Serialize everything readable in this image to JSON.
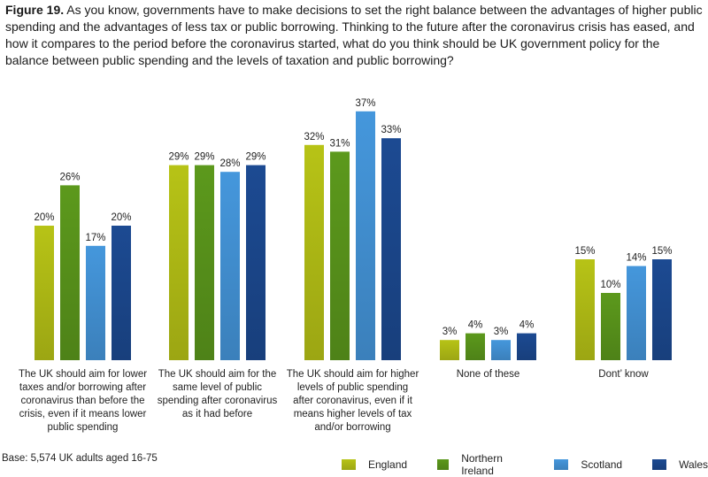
{
  "title": {
    "figure_label": "Figure 19.",
    "text": " As you know, governments have to make decisions to set the right balance between the advantages of higher public spending and the advantages of less tax or public borrowing. Thinking to the future after the coronavirus crisis has eased, and how it compares to the period before the coronavirus started, what do you think should be UK government policy for the balance between public spending and the levels of taxation and public borrowing?"
  },
  "base_note": "Base: 5,574 UK adults aged 16-75",
  "chart_data": {
    "type": "bar",
    "categories": [
      "The UK should aim for lower taxes and/or borrowing after coronavirus than before the crisis, even if it means lower public spending",
      "The UK should aim for the same level of public spending after coronavirus as it had before",
      "The UK should aim for higher levels of public spending after coronavirus, even if it means higher levels of tax and/or borrowing",
      "None of these",
      "Dont’ know"
    ],
    "series": [
      {
        "name": "England",
        "color": "#b7c316",
        "values": [
          20,
          29,
          32,
          3,
          15
        ]
      },
      {
        "name": "Northern Ireland",
        "color": "#5c991c",
        "values": [
          26,
          29,
          31,
          4,
          10
        ]
      },
      {
        "name": "Scotland",
        "color": "#4597dc",
        "values": [
          17,
          28,
          37,
          3,
          14
        ]
      },
      {
        "name": "Wales",
        "color": "#1c4a92",
        "values": [
          20,
          29,
          33,
          4,
          15
        ]
      }
    ],
    "value_suffix": "%",
    "ylim": [
      0,
      40
    ],
    "legend_position": "bottom-right",
    "grid": false
  }
}
